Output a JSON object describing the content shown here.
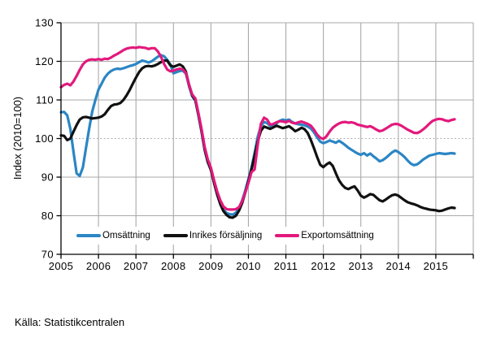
{
  "figure": {
    "y_axis_title": "Index (2010=100)",
    "source": "Källa: Statistikcentralen"
  },
  "legend": {
    "items": [
      {
        "label": "Omsättning",
        "color": "#2b86c4"
      },
      {
        "label": "Inrikes försäljning",
        "color": "#111111"
      },
      {
        "label": "Exportomsättning",
        "color": "#e2197c"
      }
    ]
  },
  "chart_data": {
    "type": "line",
    "title": "",
    "xlabel": "",
    "ylabel": "Index (2010=100)",
    "ylim": [
      70,
      130
    ],
    "xlim": [
      2005,
      2016
    ],
    "y_ticks": [
      70,
      80,
      90,
      100,
      110,
      120,
      130
    ],
    "x_ticks": [
      2005,
      2006,
      2007,
      2008,
      2009,
      2010,
      2011,
      2012,
      2013,
      2014,
      2015
    ],
    "grid": true,
    "reference_line": 100,
    "grid_color": "#a9a9a9",
    "axis_color": "#000000",
    "x_start": 2005.0,
    "x_step_months": 1,
    "x_end_label": "2015-07",
    "legend_position": "bottom-inside",
    "series": [
      {
        "name": "Omsättning",
        "color": "#2b86c4",
        "values": [
          106.8,
          106.9,
          106.0,
          102.5,
          96.5,
          91.0,
          90.3,
          92.5,
          97.5,
          102.5,
          107.0,
          110.0,
          112.7,
          114.2,
          115.8,
          116.8,
          117.5,
          117.9,
          118.1,
          118.0,
          118.2,
          118.5,
          118.8,
          119.0,
          119.3,
          119.8,
          120.2,
          120.0,
          119.7,
          120.0,
          120.6,
          121.2,
          121.6,
          121.3,
          120.4,
          119.2,
          116.9,
          117.2,
          117.5,
          117.6,
          116.8,
          113.6,
          111.0,
          109.8,
          106.0,
          101.8,
          97.0,
          93.8,
          92.0,
          88.8,
          85.8,
          83.2,
          81.5,
          80.7,
          80.4,
          80.3,
          80.8,
          82.0,
          84.0,
          86.5,
          89.5,
          92.5,
          96.3,
          100.5,
          103.2,
          104.3,
          104.0,
          103.2,
          103.5,
          103.9,
          104.6,
          104.9,
          104.7,
          104.9,
          104.3,
          103.9,
          103.7,
          103.6,
          103.4,
          103.1,
          102.6,
          101.6,
          100.3,
          99.2,
          98.8,
          99.1,
          99.5,
          99.2,
          98.9,
          99.4,
          98.9,
          98.3,
          97.6,
          97.1,
          96.6,
          96.1,
          95.8,
          96.2,
          95.6,
          96.1,
          95.4,
          94.8,
          94.1,
          94.4,
          95.0,
          95.7,
          96.4,
          96.9,
          96.5,
          95.9,
          95.2,
          94.3,
          93.5,
          93.1,
          93.3,
          93.9,
          94.6,
          95.1,
          95.6,
          95.8,
          96.0,
          96.2,
          96.1,
          96.0,
          96.1,
          96.2,
          96.1
        ]
      },
      {
        "name": "Inrikes försäljning",
        "color": "#111111",
        "values": [
          100.8,
          100.7,
          99.6,
          100.0,
          101.8,
          103.5,
          104.9,
          105.5,
          105.6,
          105.4,
          105.2,
          105.3,
          105.4,
          105.7,
          106.3,
          107.4,
          108.4,
          108.8,
          108.9,
          109.2,
          110.0,
          111.2,
          112.6,
          114.2,
          115.8,
          117.2,
          118.2,
          118.7,
          118.8,
          118.7,
          118.9,
          119.3,
          119.8,
          120.2,
          120.2,
          119.0,
          118.6,
          118.9,
          119.2,
          118.7,
          117.3,
          113.8,
          111.2,
          110.0,
          106.2,
          102.0,
          97.2,
          94.0,
          91.8,
          88.5,
          85.5,
          83.0,
          81.2,
          80.2,
          79.6,
          79.5,
          80.0,
          81.3,
          83.3,
          86.0,
          89.0,
          92.0,
          95.5,
          99.3,
          102.0,
          103.1,
          102.8,
          102.5,
          102.9,
          103.3,
          103.0,
          102.7,
          102.9,
          103.2,
          102.6,
          101.9,
          102.3,
          102.8,
          102.4,
          101.4,
          99.6,
          97.5,
          95.2,
          93.2,
          92.6,
          93.3,
          93.8,
          92.9,
          91.0,
          89.2,
          88.0,
          87.2,
          86.9,
          87.3,
          87.6,
          86.5,
          85.2,
          84.7,
          85.1,
          85.6,
          85.4,
          84.7,
          84.0,
          83.7,
          84.2,
          84.8,
          85.3,
          85.5,
          85.2,
          84.6,
          84.0,
          83.5,
          83.2,
          83.0,
          82.7,
          82.3,
          82.0,
          81.8,
          81.6,
          81.5,
          81.4,
          81.2,
          81.3,
          81.6,
          81.9,
          82.1,
          82.0
        ]
      },
      {
        "name": "Exportomsättning",
        "color": "#e2197c",
        "values": [
          113.3,
          113.9,
          114.2,
          113.8,
          114.8,
          116.2,
          117.8,
          119.2,
          120.0,
          120.4,
          120.5,
          120.4,
          120.6,
          120.4,
          120.7,
          120.6,
          121.0,
          121.5,
          121.9,
          122.4,
          122.9,
          123.3,
          123.5,
          123.6,
          123.5,
          123.7,
          123.6,
          123.5,
          123.2,
          123.4,
          123.4,
          122.6,
          121.2,
          119.3,
          117.9,
          117.4,
          117.6,
          117.9,
          118.1,
          117.9,
          117.0,
          114.0,
          111.4,
          110.4,
          106.6,
          102.5,
          97.8,
          94.6,
          92.4,
          89.2,
          86.3,
          84.0,
          82.4,
          81.7,
          81.6,
          81.6,
          81.7,
          82.2,
          83.8,
          86.0,
          88.5,
          91.3,
          92.0,
          98.5,
          103.8,
          105.4,
          104.9,
          103.6,
          103.8,
          104.2,
          104.5,
          104.4,
          104.2,
          104.6,
          104.1,
          103.9,
          104.2,
          104.4,
          104.1,
          103.8,
          103.3,
          102.3,
          101.0,
          100.2,
          99.9,
          100.6,
          101.8,
          102.8,
          103.4,
          103.9,
          104.2,
          104.3,
          104.1,
          104.2,
          104.0,
          103.6,
          103.4,
          103.2,
          103.0,
          103.2,
          102.8,
          102.3,
          101.9,
          102.1,
          102.6,
          103.1,
          103.6,
          103.8,
          103.7,
          103.3,
          102.8,
          102.3,
          101.9,
          101.5,
          101.4,
          101.8,
          102.4,
          103.1,
          103.9,
          104.6,
          104.9,
          105.1,
          105.0,
          104.7,
          104.5,
          104.8,
          105.0
        ]
      }
    ]
  }
}
